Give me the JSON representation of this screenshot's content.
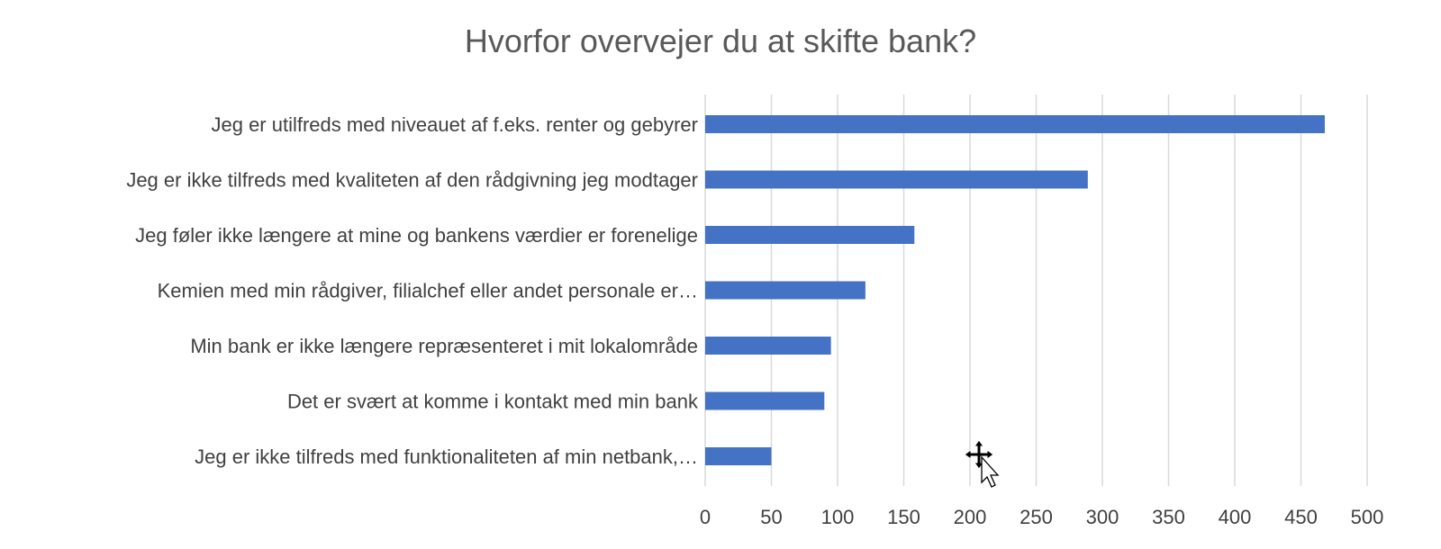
{
  "chart_data": {
    "type": "bar",
    "orientation": "horizontal",
    "title": "Hvorfor overvejer du at skifte bank?",
    "xlabel": "",
    "ylabel": "",
    "categories": [
      "Jeg er utilfreds med niveauet af f.eks. renter og gebyrer",
      "Jeg er ikke tilfreds med kvaliteten af den rådgivning jeg modtager",
      "Jeg føler ikke længere at mine og bankens værdier er forenelige",
      "Kemien med min rådgiver, filialchef eller andet personale er…",
      "Min bank er ikke længere repræsenteret i mit lokalområde",
      "Det er svært at komme i kontakt med min bank",
      "Jeg er ikke tilfreds med funktionaliteten af min netbank,…"
    ],
    "values": [
      468,
      289,
      158,
      121,
      95,
      90,
      50
    ],
    "xlim": [
      0,
      500
    ],
    "ticks": [
      "0",
      "50",
      "100",
      "150",
      "200",
      "250",
      "300",
      "350",
      "400",
      "450",
      "500"
    ],
    "grid": true,
    "legend": "none",
    "bar_color": "#4472C4"
  }
}
